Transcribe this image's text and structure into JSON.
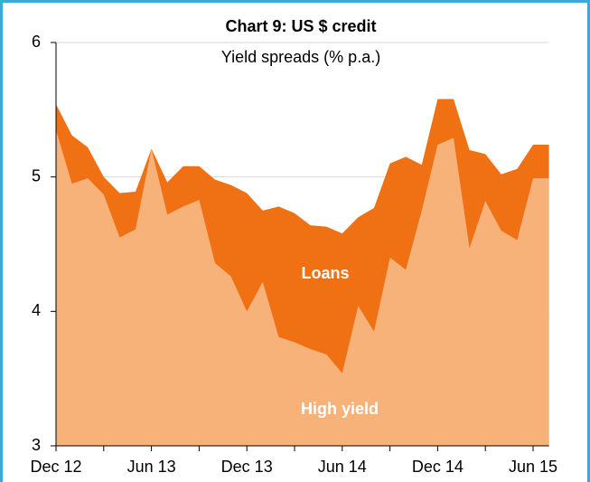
{
  "chart_data": {
    "type": "area",
    "title": "Chart 9: US $ credit",
    "subtitle": "Yield spreads (% p.a.)",
    "categories": [
      "Dec 12",
      null,
      null,
      null,
      null,
      null,
      "Jun 13",
      null,
      null,
      null,
      null,
      null,
      "Dec 13",
      null,
      null,
      null,
      null,
      null,
      "Jun 14",
      null,
      null,
      null,
      null,
      null,
      "Dec 14",
      null,
      null,
      null,
      null,
      null,
      "Jun 15",
      null
    ],
    "series": [
      {
        "name": "Loans",
        "color": "#f07014",
        "values": [
          5.54,
          5.31,
          5.22,
          5.0,
          4.88,
          4.89,
          5.21,
          4.96,
          5.08,
          5.08,
          4.98,
          4.94,
          4.88,
          4.75,
          4.78,
          4.73,
          4.64,
          4.63,
          4.58,
          4.7,
          4.77,
          5.1,
          5.15,
          5.09,
          5.58,
          5.58,
          5.2,
          5.17,
          5.02,
          5.06,
          5.24,
          5.24
        ]
      },
      {
        "name": "High yield",
        "color": "#f7b27a",
        "values": [
          5.35,
          4.95,
          4.99,
          4.87,
          4.55,
          4.61,
          5.21,
          4.72,
          4.78,
          4.83,
          4.36,
          4.26,
          4.0,
          4.22,
          3.81,
          3.77,
          3.72,
          3.68,
          3.54,
          4.04,
          3.85,
          4.4,
          4.31,
          4.75,
          5.24,
          5.29,
          4.47,
          4.82,
          4.6,
          4.53,
          4.99,
          4.99
        ]
      }
    ],
    "ylim": [
      3,
      6
    ],
    "yticks": [
      3,
      4,
      5,
      6
    ],
    "grid": true
  }
}
